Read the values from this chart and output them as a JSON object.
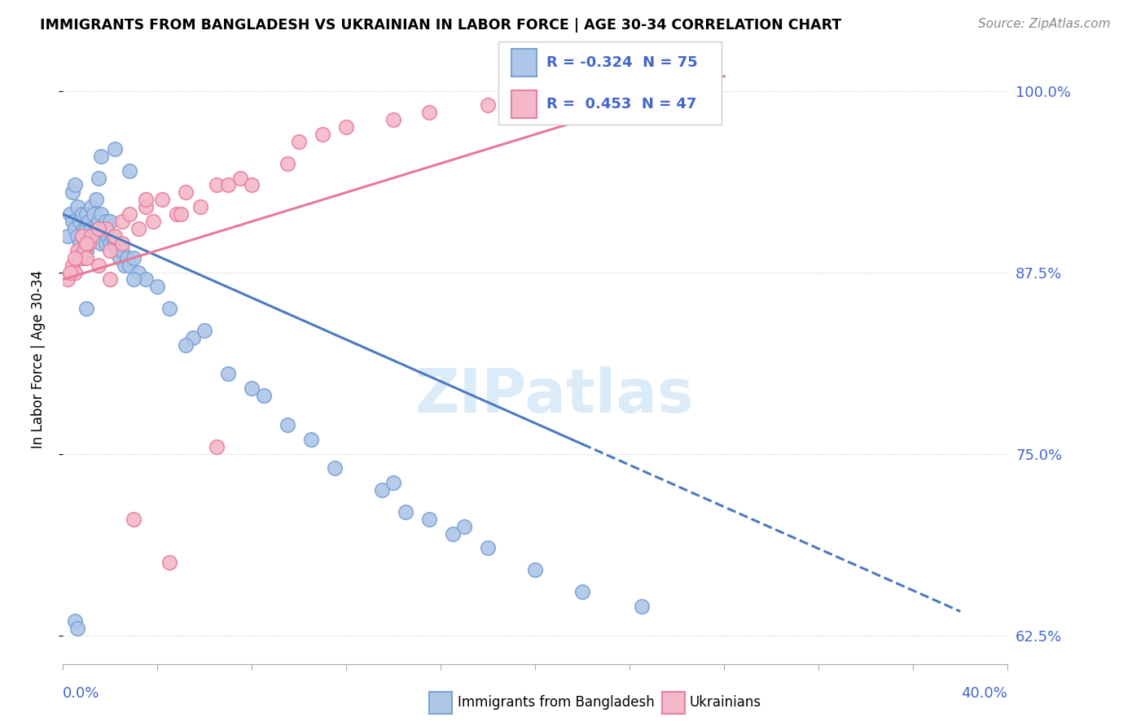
{
  "title": "IMMIGRANTS FROM BANGLADESH VS UKRAINIAN IN LABOR FORCE | AGE 30-34 CORRELATION CHART",
  "source": "Source: ZipAtlas.com",
  "ylabel_label": "In Labor Force | Age 30-34",
  "xlim": [
    0.0,
    40.0
  ],
  "ylim": [
    60.5,
    102.5
  ],
  "yticks": [
    62.5,
    75.0,
    87.5,
    100.0
  ],
  "legend_r_bangladesh": "R = -0.324",
  "legend_n_bangladesh": "N = 75",
  "legend_r_ukraine": "R =  0.453",
  "legend_n_ukraine": "N = 47",
  "color_bangladesh_fill": "#aec6e8",
  "color_ukraine_fill": "#f4b8c8",
  "color_bangladesh_edge": "#7ba3d4",
  "color_ukraine_edge": "#e87fa0",
  "color_bangladesh_line": "#4c7abf",
  "color_ukraine_line": "#e8799a",
  "color_text_blue": "#4466cc",
  "watermark": "ZIPatlas",
  "bangladesh_x": [
    0.2,
    0.3,
    0.4,
    0.4,
    0.5,
    0.5,
    0.6,
    0.6,
    0.7,
    0.7,
    0.8,
    0.8,
    0.9,
    0.9,
    1.0,
    1.0,
    1.0,
    1.1,
    1.1,
    1.2,
    1.2,
    1.3,
    1.3,
    1.4,
    1.4,
    1.5,
    1.5,
    1.6,
    1.6,
    1.7,
    1.8,
    1.8,
    1.9,
    2.0,
    2.0,
    2.1,
    2.2,
    2.3,
    2.4,
    2.5,
    2.6,
    2.7,
    2.8,
    3.0,
    3.2,
    3.5,
    4.0,
    4.5,
    5.5,
    6.0,
    7.0,
    8.5,
    9.5,
    10.5,
    11.5,
    13.5,
    14.5,
    15.5,
    16.5,
    18.0,
    20.0,
    22.0,
    24.5,
    1.5,
    1.6,
    2.2,
    2.8,
    5.2,
    8.0,
    14.0,
    17.0,
    3.0,
    1.0,
    0.5,
    0.6
  ],
  "bangladesh_y": [
    90.0,
    91.5,
    93.0,
    91.0,
    90.5,
    93.5,
    90.0,
    92.0,
    89.5,
    91.0,
    90.0,
    91.5,
    88.5,
    90.5,
    89.0,
    90.5,
    91.5,
    89.5,
    91.0,
    90.5,
    92.0,
    90.0,
    91.5,
    90.5,
    92.5,
    90.0,
    91.0,
    89.5,
    91.5,
    90.5,
    89.5,
    91.0,
    90.0,
    89.5,
    91.0,
    90.0,
    89.5,
    89.0,
    88.5,
    89.0,
    88.0,
    88.5,
    88.0,
    88.5,
    87.5,
    87.0,
    86.5,
    85.0,
    83.0,
    83.5,
    80.5,
    79.0,
    77.0,
    76.0,
    74.0,
    72.5,
    71.0,
    70.5,
    69.5,
    68.5,
    67.0,
    65.5,
    64.5,
    94.0,
    95.5,
    96.0,
    94.5,
    82.5,
    79.5,
    73.0,
    70.0,
    87.0,
    85.0,
    63.5,
    63.0
  ],
  "ukraine_x": [
    0.2,
    0.4,
    0.5,
    0.6,
    0.7,
    0.8,
    0.9,
    1.0,
    1.1,
    1.2,
    1.5,
    1.8,
    2.0,
    2.2,
    2.5,
    2.8,
    3.2,
    3.5,
    3.8,
    4.2,
    4.8,
    5.2,
    5.8,
    6.5,
    7.5,
    8.0,
    9.5,
    11.0,
    12.0,
    14.0,
    15.5,
    18.0,
    20.0,
    25.0,
    0.3,
    0.5,
    1.0,
    1.5,
    2.0,
    2.5,
    3.5,
    5.0,
    7.0,
    10.0,
    3.0,
    4.5,
    6.5
  ],
  "ukraine_y": [
    87.0,
    88.0,
    87.5,
    89.0,
    88.5,
    90.0,
    89.0,
    88.5,
    89.5,
    90.0,
    88.0,
    90.5,
    89.0,
    90.0,
    91.0,
    91.5,
    90.5,
    92.0,
    91.0,
    92.5,
    91.5,
    93.0,
    92.0,
    93.5,
    94.0,
    93.5,
    95.0,
    97.0,
    97.5,
    98.0,
    98.5,
    99.0,
    99.5,
    100.5,
    87.5,
    88.5,
    89.5,
    90.5,
    87.0,
    89.5,
    92.5,
    91.5,
    93.5,
    96.5,
    70.5,
    67.5,
    75.5
  ],
  "b_line_x0": 0.0,
  "b_line_x_solid_end": 22.0,
  "b_line_x_dash_end": 38.0,
  "b_line_y0": 91.5,
  "b_line_slope": -0.72,
  "u_line_x0": 0.0,
  "u_line_x_end": 28.0,
  "u_line_y0": 87.0,
  "u_line_slope": 0.5
}
